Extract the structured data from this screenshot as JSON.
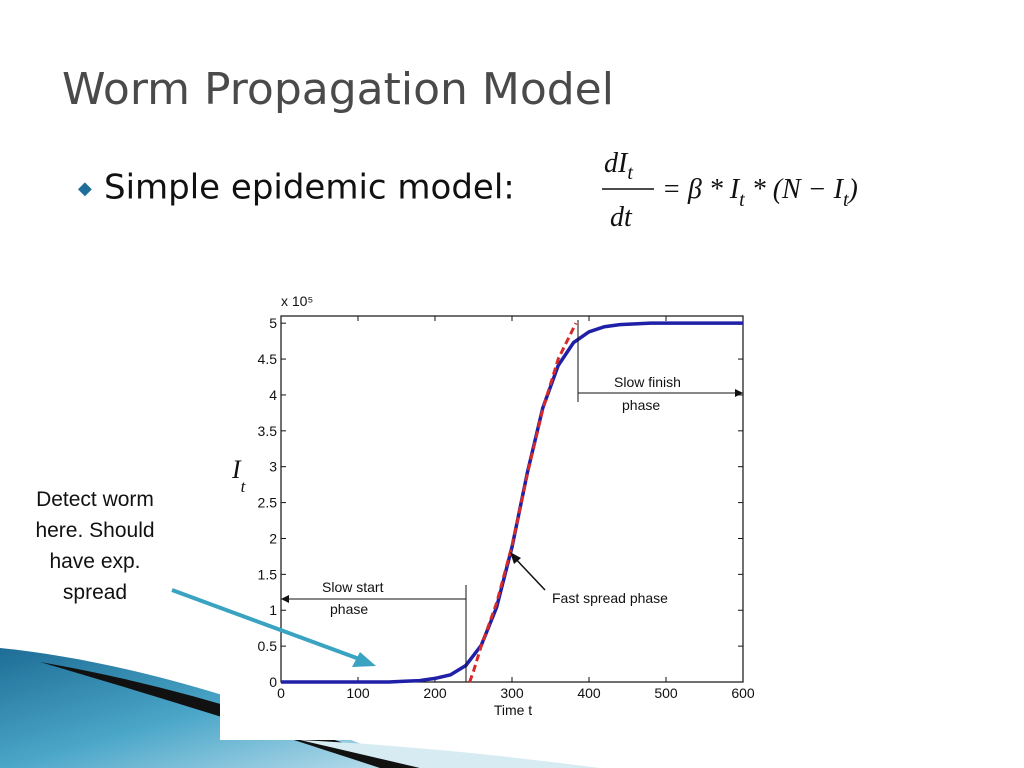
{
  "slide": {
    "title": "Worm Propagation Model",
    "bullet": "Simple epidemic model:",
    "equation": {
      "numerator": "dI",
      "numerator_sub": "t",
      "denominator": "dt",
      "rhs": [
        "= β * I",
        "t",
        " * (N − I",
        "t",
        ")"
      ]
    },
    "callout": [
      "Detect worm",
      "here. Should",
      "have exp.",
      "spread"
    ]
  },
  "chart_data": {
    "type": "line",
    "y_label": "I",
    "y_label_sub": "t",
    "x_label": "Time t",
    "y_scale_label": "x 10⁵",
    "xlim": [
      0,
      600
    ],
    "xticks": [
      0,
      100,
      200,
      300,
      400,
      500,
      600
    ],
    "ylim": [
      0,
      5.1
    ],
    "yticks": [
      0,
      0.5,
      1,
      1.5,
      2,
      2.5,
      3,
      3.5,
      4,
      4.5,
      5
    ],
    "series": [
      {
        "color": "#1f1fa8",
        "dashed": false,
        "x": [
          0,
          20,
          40,
          60,
          80,
          100,
          120,
          140,
          160,
          180,
          200,
          220,
          240,
          260,
          280,
          300,
          320,
          340,
          360,
          380,
          400,
          420,
          440,
          460,
          480,
          500,
          520,
          540,
          560,
          580,
          600
        ],
        "values": [
          0,
          0,
          0,
          0,
          0,
          0,
          0,
          0,
          0.01,
          0.02,
          0.05,
          0.1,
          0.23,
          0.51,
          1.04,
          1.88,
          2.92,
          3.82,
          4.41,
          4.73,
          4.88,
          4.95,
          4.98,
          4.99,
          5,
          5,
          5,
          5,
          5,
          5,
          5
        ]
      },
      {
        "color": "#d42a2a",
        "dashed": true,
        "x": [
          245,
          250,
          260,
          280,
          300,
          320,
          340,
          360,
          383
        ],
        "values": [
          0,
          0.15,
          0.5,
          1.1,
          1.9,
          2.9,
          3.8,
          4.5,
          5
        ]
      }
    ],
    "annotations": [
      [
        "Slow start",
        "phase"
      ],
      [
        "Fast spread phase"
      ],
      [
        "Slow finish",
        "phase"
      ]
    ]
  }
}
